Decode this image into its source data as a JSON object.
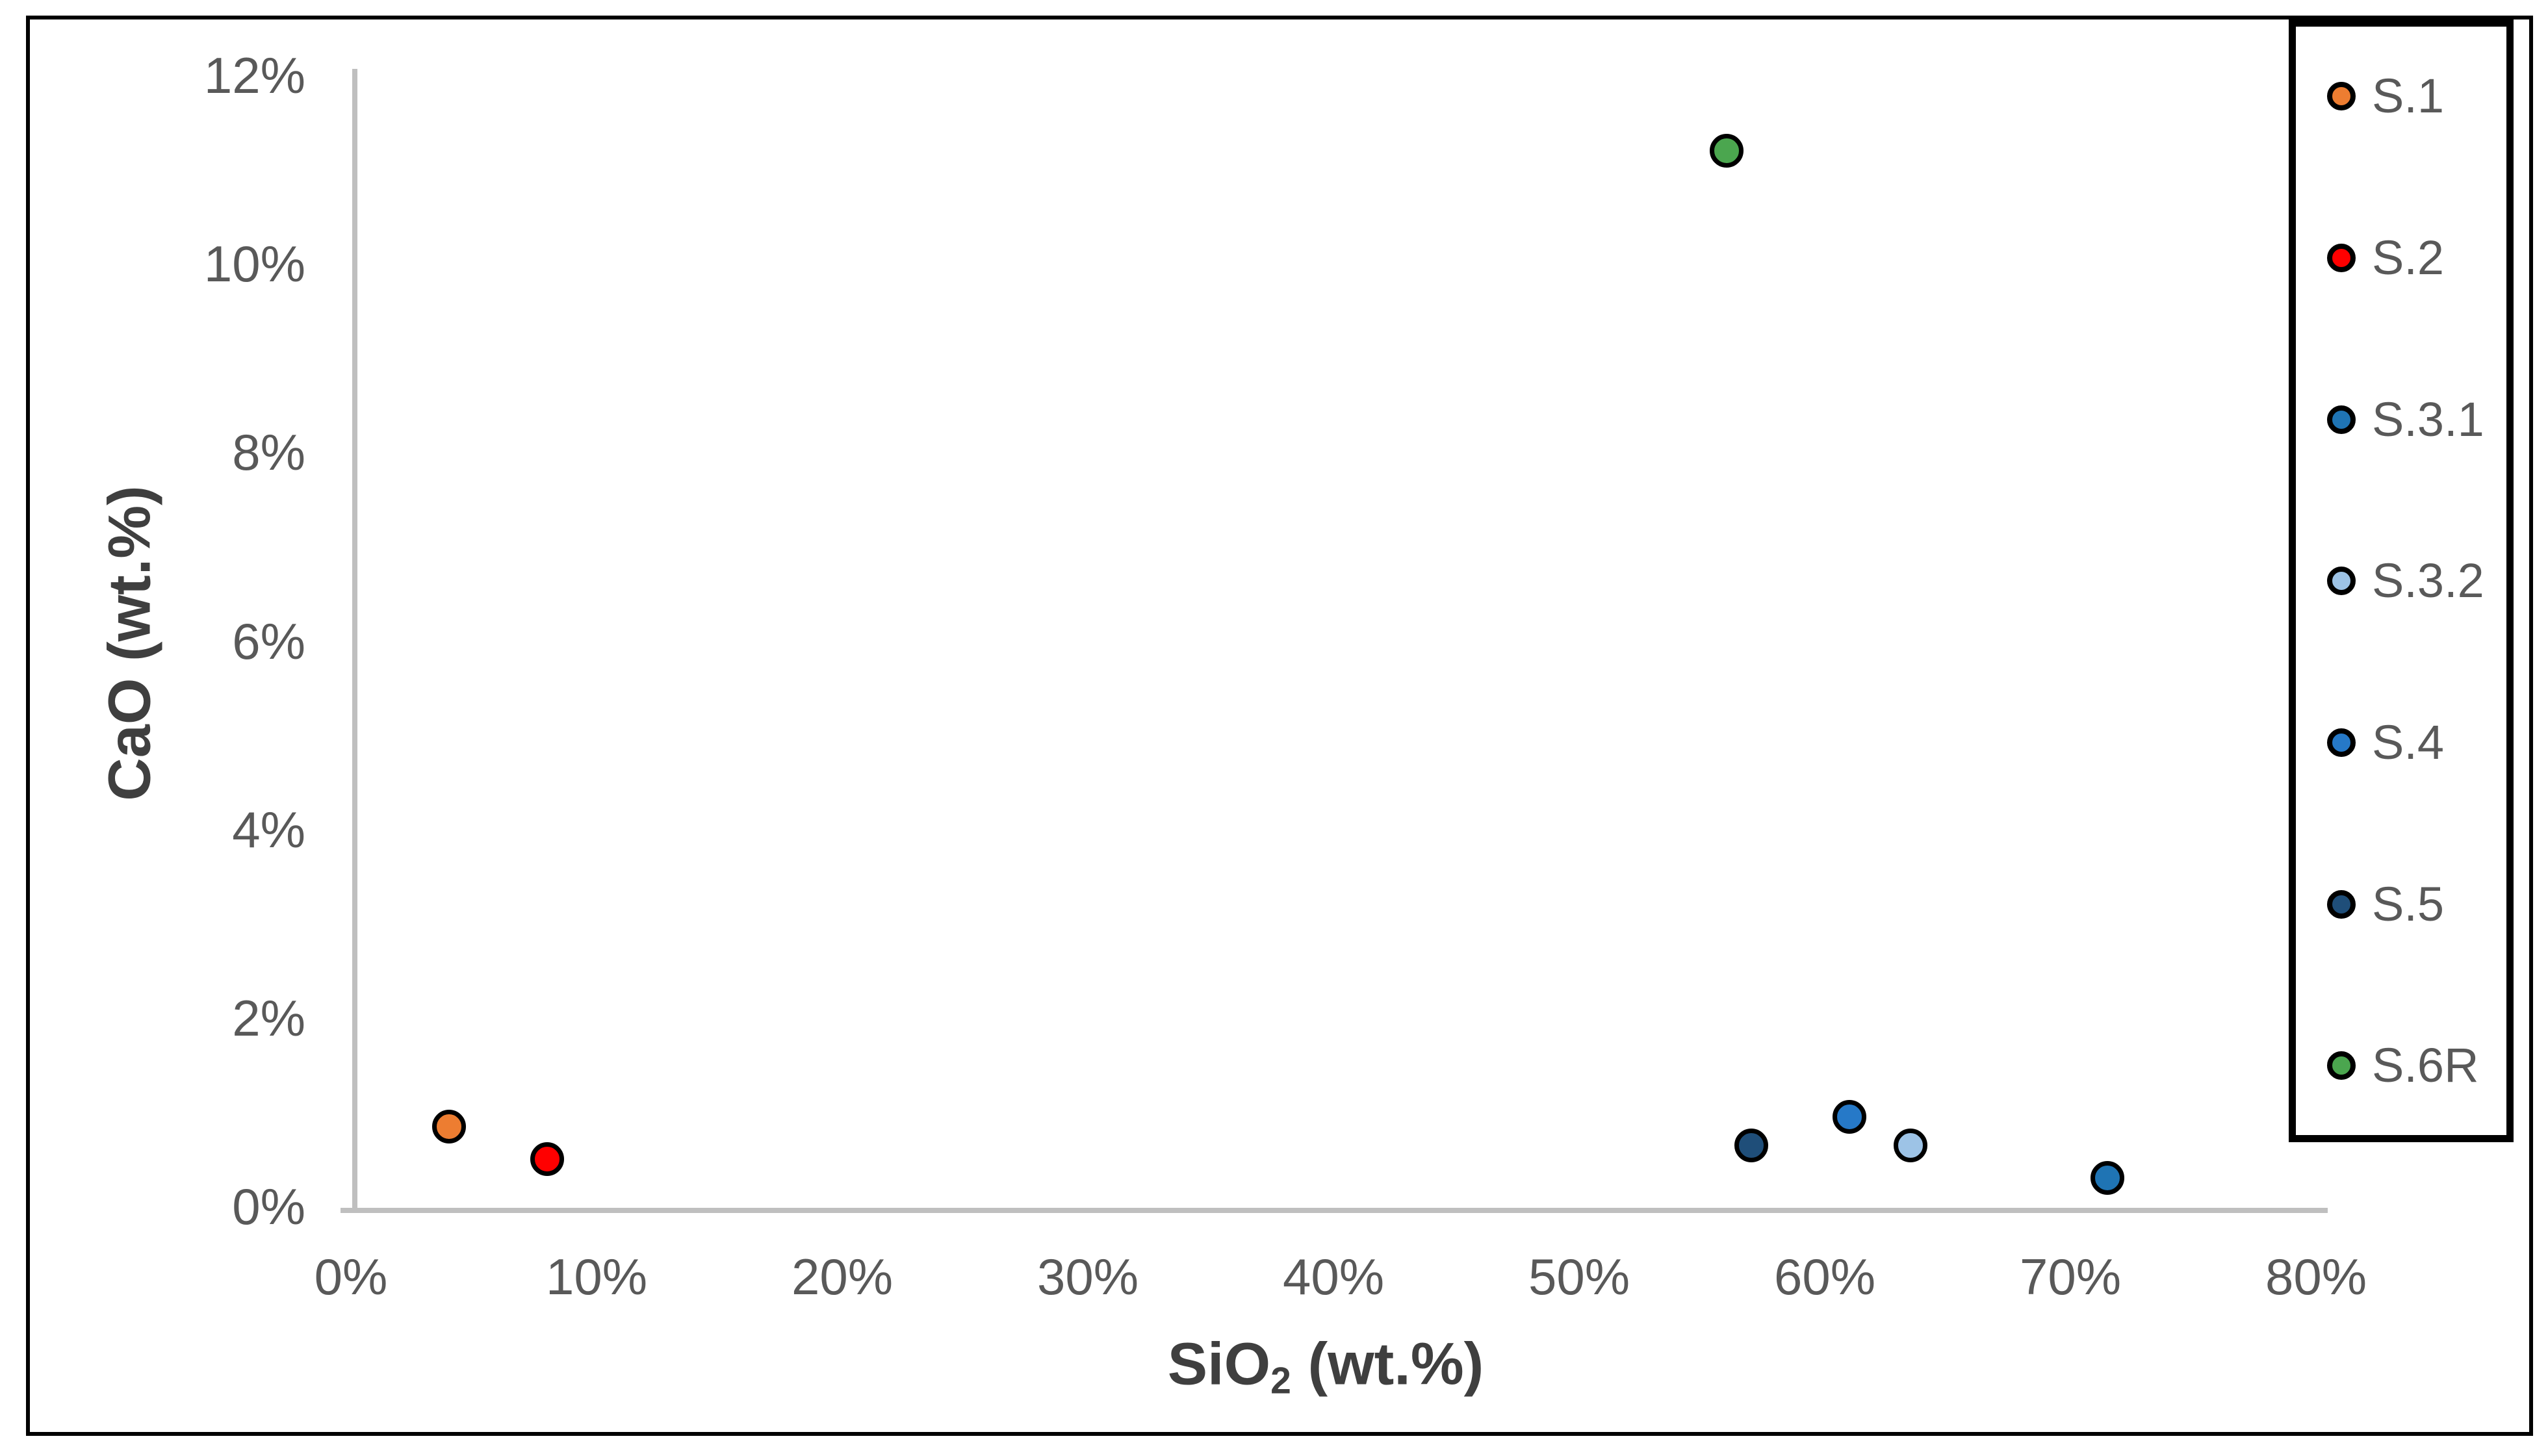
{
  "chart_data": {
    "type": "scatter",
    "title": "",
    "xlabel": "SiO2 (wt.%)",
    "xlabel_parts": {
      "prefix": "SiO",
      "subscript": "2",
      "suffix": " (wt.%)"
    },
    "ylabel": "CaO (wt.%)",
    "xlim": [
      0,
      80
    ],
    "ylim": [
      0,
      12
    ],
    "x_ticks": [
      0,
      10,
      20,
      30,
      40,
      50,
      60,
      70,
      80
    ],
    "x_tick_labels": [
      "0%",
      "10%",
      "20%",
      "30%",
      "40%",
      "50%",
      "60%",
      "70%",
      "80%"
    ],
    "y_ticks": [
      0,
      2,
      4,
      6,
      8,
      10,
      12
    ],
    "y_tick_labels": [
      "0%",
      "2%",
      "4%",
      "6%",
      "8%",
      "10%",
      "12%"
    ],
    "grid": false,
    "legend_position": "right-outside",
    "series": [
      {
        "name": "S.1",
        "color": "#ED7D31",
        "points": [
          {
            "x": 4,
            "y": 0.85
          }
        ]
      },
      {
        "name": "S.2",
        "color": "#FF0000",
        "points": [
          {
            "x": 8,
            "y": 0.5
          }
        ]
      },
      {
        "name": "S.3.1",
        "color": "#1F74B4",
        "points": [
          {
            "x": 71.5,
            "y": 0.3
          }
        ]
      },
      {
        "name": "S.3.2",
        "color": "#9DC3E6",
        "points": [
          {
            "x": 63.5,
            "y": 0.65
          }
        ]
      },
      {
        "name": "S.4",
        "color": "#2679C8",
        "points": [
          {
            "x": 61,
            "y": 0.95
          }
        ]
      },
      {
        "name": "S.5",
        "color": "#1F4E79",
        "points": [
          {
            "x": 57,
            "y": 0.65
          }
        ]
      },
      {
        "name": "S.6R",
        "color": "#4BA64F",
        "points": [
          {
            "x": 56,
            "y": 11.2
          }
        ]
      }
    ]
  },
  "style": {
    "axis_line_color": "#BFBFBF",
    "tick_label_color": "#595959",
    "axis_title_color": "#3F3F3F",
    "legend_text_color": "#595959",
    "marker_outline_color": "#000000",
    "figure_border_color": "#000000",
    "background_color": "#FFFFFF"
  }
}
